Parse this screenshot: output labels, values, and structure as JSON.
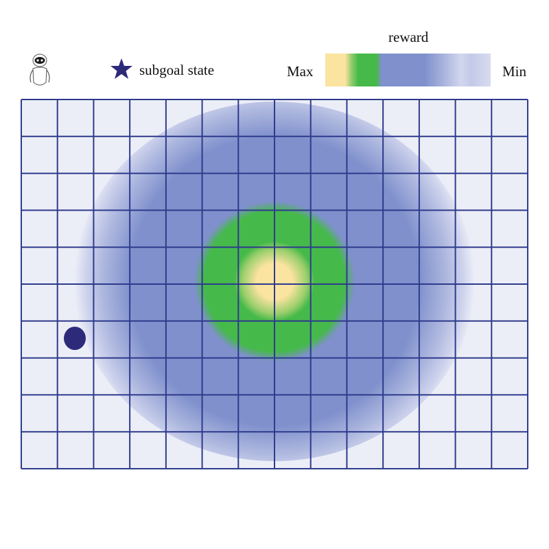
{
  "legend": {
    "subgoal_label": "subgoal state",
    "reward_title": "reward",
    "max_label": "Max",
    "min_label": "Min",
    "agent_icon": "robot-icon",
    "subgoal_icon": "star-icon"
  },
  "grid": {
    "columns": 14,
    "rows": 10,
    "line_color": "#2e3a8c",
    "background_color": "#eceef7"
  },
  "reward_colors": {
    "max": "#fbe3a0",
    "high": "#45b94a",
    "mid": "#7f90cc",
    "low": "#c7cde9",
    "min": "#eceef7"
  },
  "agent": {
    "color": "#2e2a7a"
  }
}
